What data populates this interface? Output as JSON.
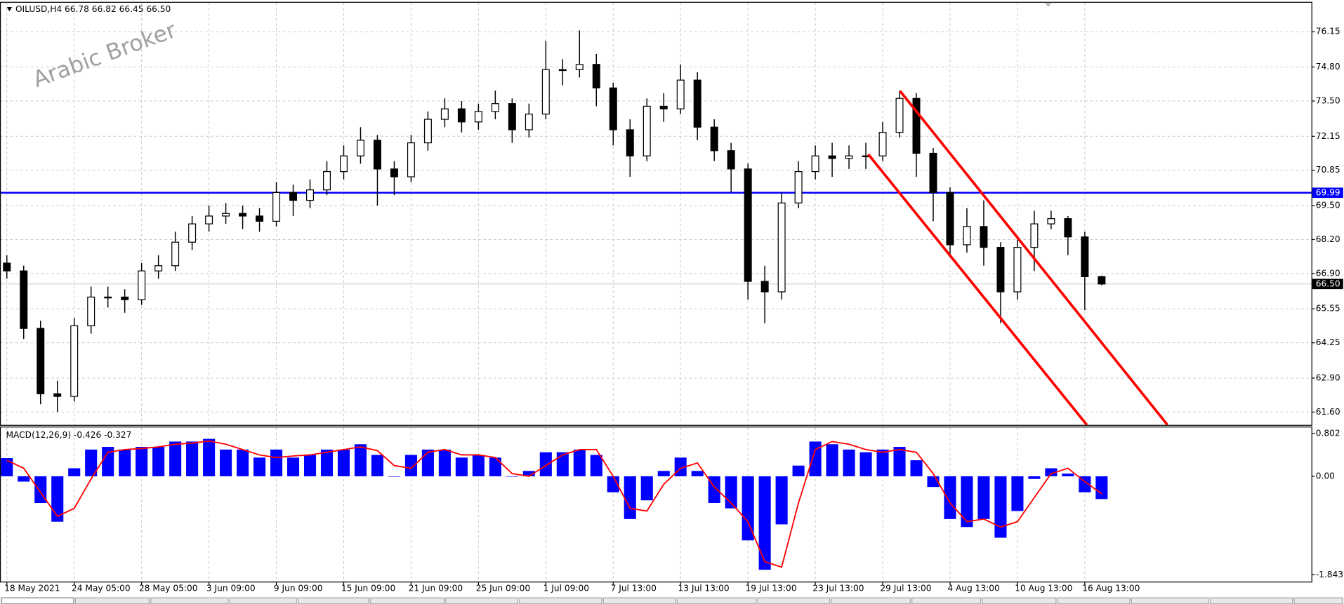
{
  "chart_data": [
    {
      "type": "candlestick",
      "title": "OILUSD,H4  66.78 66.82 66.45 66.50",
      "watermark": "Arabic Broker",
      "ylim": [
        61.11,
        77.26
      ],
      "yticks": [
        76.15,
        {
          "value": 74.8,
          "label": "74.80"
        },
        {
          "value": 73.5,
          "label": "73.50"
        },
        72.15,
        70.85,
        {
          "value": 69.5,
          "label": "69.50"
        },
        {
          "value": 68.2,
          "label": "68.20"
        },
        {
          "value": 66.9,
          "label": "66.90"
        },
        65.55,
        64.25,
        {
          "value": 62.9,
          "label": "62.90"
        },
        {
          "value": 61.6,
          "label": "61.60"
        }
      ],
      "grid": true,
      "hline": {
        "value": 69.99,
        "label": "69.99",
        "color": "#0000ff"
      },
      "current_price": {
        "value": 66.5,
        "label": "66.50"
      },
      "open": [
        67.3,
        67.0,
        64.8,
        62.3,
        62.2,
        64.9,
        66.0,
        66.0,
        65.9,
        67.0,
        67.2,
        68.1,
        68.8,
        69.1,
        69.2,
        69.1,
        68.9,
        70.0,
        69.7,
        70.1,
        70.8,
        71.4,
        72.0,
        70.9,
        70.6,
        71.9,
        72.8,
        73.2,
        72.7,
        73.1,
        73.4,
        72.4,
        73.0,
        74.7,
        74.7,
        74.9,
        74.0,
        72.4,
        71.4,
        73.3,
        73.2,
        74.3,
        72.5,
        71.6,
        70.9,
        66.6,
        66.2,
        69.6,
        70.8,
        71.4,
        71.3,
        71.4,
        71.4,
        72.3,
        73.6,
        71.5,
        70.0,
        68.0,
        68.7,
        67.9,
        66.2,
        67.9,
        68.8,
        69.0,
        68.3,
        66.78
      ],
      "high": [
        67.6,
        67.2,
        65.1,
        62.8,
        65.2,
        66.4,
        66.4,
        66.3,
        67.3,
        67.6,
        68.5,
        69.1,
        69.5,
        69.6,
        69.5,
        69.4,
        70.4,
        70.3,
        70.5,
        71.2,
        71.8,
        72.5,
        72.2,
        71.2,
        72.2,
        73.1,
        73.6,
        73.5,
        73.4,
        73.9,
        73.6,
        73.4,
        75.8,
        75.1,
        76.2,
        75.3,
        74.2,
        72.8,
        73.6,
        73.8,
        74.9,
        74.6,
        72.8,
        71.9,
        71.1,
        67.2,
        70.0,
        71.2,
        71.8,
        71.9,
        71.8,
        71.9,
        72.7,
        73.9,
        73.8,
        71.7,
        70.2,
        69.4,
        69.7,
        68.1,
        68.2,
        69.3,
        69.3,
        69.1,
        68.5,
        66.82
      ],
      "low": [
        66.7,
        64.4,
        61.9,
        61.6,
        62.0,
        64.6,
        65.6,
        65.4,
        65.7,
        66.7,
        67.0,
        67.8,
        68.5,
        68.8,
        68.6,
        68.5,
        68.7,
        69.1,
        69.4,
        69.9,
        70.5,
        71.1,
        69.5,
        69.9,
        70.4,
        71.6,
        72.5,
        72.3,
        72.4,
        72.8,
        71.9,
        72.1,
        72.8,
        74.1,
        74.4,
        73.3,
        71.8,
        70.6,
        71.2,
        72.7,
        73.0,
        72.0,
        71.2,
        70.0,
        65.9,
        65.0,
        65.9,
        69.4,
        70.5,
        70.6,
        70.9,
        70.9,
        71.2,
        72.1,
        70.6,
        68.9,
        67.5,
        67.7,
        67.2,
        65.0,
        65.9,
        67.0,
        68.6,
        67.6,
        65.5,
        66.45
      ],
      "close": [
        67.0,
        64.8,
        62.3,
        62.2,
        64.9,
        66.0,
        66.0,
        65.9,
        67.0,
        67.2,
        68.1,
        68.8,
        69.1,
        69.2,
        69.1,
        68.9,
        70.0,
        69.7,
        70.1,
        70.8,
        71.4,
        72.0,
        70.9,
        70.6,
        71.9,
        72.8,
        73.2,
        72.7,
        73.1,
        73.4,
        72.4,
        73.0,
        74.7,
        74.7,
        74.9,
        74.0,
        72.4,
        71.4,
        73.3,
        73.2,
        74.3,
        72.5,
        71.6,
        70.9,
        66.6,
        66.2,
        69.6,
        70.8,
        71.4,
        71.3,
        71.4,
        71.4,
        72.3,
        73.6,
        71.5,
        70.0,
        68.0,
        68.7,
        67.9,
        66.2,
        67.9,
        68.8,
        69.0,
        68.3,
        66.78,
        66.5
      ]
    },
    {
      "type": "macd",
      "title": "MACD(12,26,9) -0.426 -0.327",
      "ylim": [
        -1.971,
        0.914
      ],
      "yticks": [
        0.802,
        {
          "value": 0,
          "label": "0.00"
        },
        -1.843
      ],
      "grid": true,
      "categories": [
        "18 May 2021",
        null,
        null,
        null,
        "24 May 05:00",
        null,
        null,
        null,
        "28 May 05:00",
        null,
        null,
        null,
        "3 Jun 09:00",
        null,
        null,
        null,
        "9 Jun 09:00",
        null,
        null,
        null,
        "15 Jun 09:00",
        null,
        null,
        null,
        "21 Jun 09:00",
        null,
        null,
        null,
        "25 Jun 09:00",
        null,
        null,
        null,
        "1 Jul 09:00",
        null,
        null,
        null,
        "7 Jul 13:00",
        null,
        null,
        null,
        "13 Jul 13:00",
        null,
        null,
        null,
        "19 Jul 13:00",
        null,
        null,
        null,
        "23 Jul 13:00",
        null,
        null,
        null,
        "29 Jul 13:00",
        null,
        null,
        null,
        "4 Aug 13:00",
        null,
        null,
        null,
        "10 Aug 13:00",
        null,
        null,
        null,
        "16 Aug 13:00",
        null
      ],
      "series": [
        {
          "type": "bar",
          "color": "#0000ff",
          "values": [
            0.34,
            -0.1,
            -0.5,
            -0.85,
            0.15,
            0.5,
            0.55,
            0.5,
            0.55,
            0.55,
            0.65,
            0.65,
            0.7,
            0.5,
            0.5,
            0.35,
            0.5,
            0.35,
            0.4,
            0.5,
            0.5,
            0.6,
            0.4,
            0.0,
            0.4,
            0.5,
            0.5,
            0.35,
            0.4,
            0.35,
            0.0,
            0.1,
            0.45,
            0.45,
            0.5,
            0.4,
            -0.3,
            -0.8,
            -0.45,
            0.1,
            0.35,
            0.1,
            -0.5,
            -0.6,
            -1.2,
            -1.75,
            -0.9,
            0.2,
            0.65,
            0.6,
            0.5,
            0.45,
            0.5,
            0.55,
            0.3,
            -0.2,
            -0.8,
            -0.95,
            -0.8,
            -1.15,
            -0.65,
            -0.05,
            0.15,
            0.05,
            -0.3,
            -0.426
          ]
        },
        {
          "type": "line",
          "color": "#ff0000",
          "values": [
            0.3,
            0.15,
            -0.3,
            -0.75,
            -0.6,
            -0.05,
            0.45,
            0.5,
            0.52,
            0.55,
            0.6,
            0.62,
            0.66,
            0.6,
            0.5,
            0.4,
            0.35,
            0.38,
            0.4,
            0.45,
            0.5,
            0.55,
            0.48,
            0.2,
            0.15,
            0.45,
            0.5,
            0.4,
            0.4,
            0.35,
            0.05,
            0.0,
            0.2,
            0.4,
            0.5,
            0.5,
            0.0,
            -0.6,
            -0.65,
            -0.15,
            0.15,
            0.25,
            -0.2,
            -0.5,
            -0.85,
            -1.6,
            -1.7,
            -0.5,
            0.5,
            0.65,
            0.6,
            0.5,
            0.45,
            0.5,
            0.45,
            0.05,
            -0.5,
            -0.85,
            -0.8,
            -0.95,
            -0.85,
            -0.4,
            0.05,
            0.15,
            -0.1,
            -0.327
          ]
        }
      ]
    }
  ]
}
